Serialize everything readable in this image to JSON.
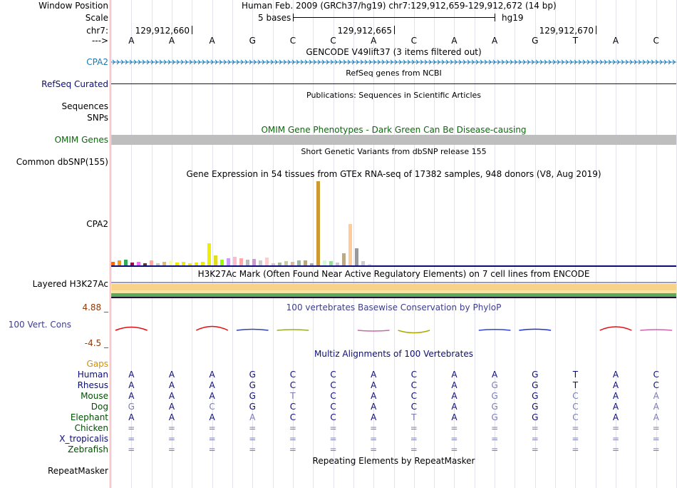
{
  "labels": {
    "window_position": "Window Position",
    "scale": "Scale",
    "chr": "chr7:",
    "arrow": "--->",
    "gencode_track": "CPA2",
    "refseq_track": "RefSeq Curated",
    "sequences": "Sequences",
    "snps": "SNPs",
    "omim_track": "OMIM Genes",
    "dbsnp_track": "Common dbSNP(155)",
    "gtex_track": "CPA2",
    "h3k27ac_track": "Layered H3K27Ac",
    "cons_max": "4.88 _",
    "cons_track": "100 Vert. Cons",
    "cons_min": "-4.5 _",
    "gaps": "Gaps",
    "repeatmasker_track": "RepeatMasker"
  },
  "headers": {
    "assembly": "Human Feb. 2009 (GRCh37/hg19)   chr7:129,912,659-129,912,672 (14 bp)",
    "scale_bases": "5 bases",
    "scale_db": "hg19",
    "gencode": "GENCODE V49lift37 (3 items filtered out)",
    "refseq": "RefSeq genes from NCBI",
    "publications": "Publications: Sequences in Scientific Articles",
    "omim": "OMIM Gene Phenotypes - Dark Green Can Be Disease-causing",
    "dbsnp": "Short Genetic Variants from dbSNP release 155",
    "gtex": "Gene Expression in 54 tissues from GTEx RNA-seq of 17382 samples, 948 donors (V8, Aug 2019)",
    "h3k27ac": "H3K27Ac Mark (Often Found Near Active Regulatory Elements) on 7 cell lines from ENCODE",
    "phylop": "100 vertebrates Basewise Conservation by PhyloP",
    "multiz": "Multiz Alignments of 100 Vertebrates",
    "repeatmasker": "Repeating Elements by RepeatMasker"
  },
  "ruler": {
    "ticks": [
      "129,912,660",
      "129,912,665",
      "129,912,670"
    ]
  },
  "reference_bases": [
    "A",
    "A",
    "A",
    "G",
    "C",
    "C",
    "A",
    "C",
    "A",
    "A",
    "G",
    "T",
    "A",
    "C"
  ],
  "gtex_bars": [
    {
      "color": "#ff6600",
      "value": 6
    },
    {
      "color": "#ff9900",
      "value": 8
    },
    {
      "color": "#33aa55",
      "value": 9
    },
    {
      "color": "#aa0044",
      "value": 5
    },
    {
      "color": "#ff66ff",
      "value": 6
    },
    {
      "color": "#663333",
      "value": 4
    },
    {
      "color": "#ffaa99",
      "value": 8
    },
    {
      "color": "#cccc99",
      "value": 4
    },
    {
      "color": "#ddbb77",
      "value": 6
    },
    {
      "color": "#ffff99",
      "value": 7
    },
    {
      "color": "#eeee00",
      "value": 5
    },
    {
      "color": "#eeee00",
      "value": 6
    },
    {
      "color": "#eeee00",
      "value": 4
    },
    {
      "color": "#eeee00",
      "value": 5
    },
    {
      "color": "#eeee00",
      "value": 6
    },
    {
      "color": "#eeee00",
      "value": 32
    },
    {
      "color": "#dddd22",
      "value": 15
    },
    {
      "color": "#99ff00",
      "value": 9
    },
    {
      "color": "#cc99ff",
      "value": 11
    },
    {
      "color": "#ffbbcc",
      "value": 13
    },
    {
      "color": "#ffaaaa",
      "value": 11
    },
    {
      "color": "#bbbbbb",
      "value": 9
    },
    {
      "color": "#cc99cc",
      "value": 10
    },
    {
      "color": "#cccccc",
      "value": 8
    },
    {
      "color": "#ffcccc",
      "value": 12
    },
    {
      "color": "#eebbbb",
      "value": 4
    },
    {
      "color": "#aabb99",
      "value": 5
    },
    {
      "color": "#cccc99",
      "value": 7
    },
    {
      "color": "#ddbb99",
      "value": 6
    },
    {
      "color": "#99bb99",
      "value": 8
    },
    {
      "color": "#bbaa77",
      "value": 8
    },
    {
      "color": "#aaaaaa",
      "value": 4
    },
    {
      "color": "#cc9933",
      "value": 118
    },
    {
      "color": "#ccffcc",
      "value": 8
    },
    {
      "color": "#99dd99",
      "value": 7
    },
    {
      "color": "#cccccc",
      "value": 5
    },
    {
      "color": "#bbaa88",
      "value": 18
    },
    {
      "color": "#ffcc99",
      "value": 59
    },
    {
      "color": "#999999",
      "value": 25
    },
    {
      "color": "#cccccc",
      "value": 7
    },
    {
      "color": "#dddddd",
      "value": 3
    }
  ],
  "phylop_scores": [
    0.45,
    0.0,
    0.55,
    0.15,
    0.08,
    0.0,
    -0.04,
    -0.35,
    0.0,
    0.12,
    0.16,
    0.0,
    0.5,
    0.08
  ],
  "multiz": [
    {
      "species": "Human",
      "bases": [
        "A",
        "A",
        "A",
        "G",
        "C",
        "C",
        "A",
        "C",
        "A",
        "A",
        "G",
        "T",
        "A",
        "C"
      ],
      "mismatch": []
    },
    {
      "species": "Rhesus",
      "bases": [
        "A",
        "A",
        "A",
        "G",
        "C",
        "C",
        "A",
        "C",
        "A",
        "G",
        "G",
        "T",
        "A",
        "C"
      ],
      "mismatch": [
        9
      ]
    },
    {
      "species": "Mouse",
      "bases": [
        "A",
        "A",
        "A",
        "G",
        "T",
        "C",
        "A",
        "C",
        "A",
        "G",
        "G",
        "C",
        "A",
        "A"
      ],
      "mismatch": [
        4,
        9,
        11,
        13
      ]
    },
    {
      "species": "Dog",
      "bases": [
        "G",
        "A",
        "C",
        "G",
        "C",
        "C",
        "A",
        "C",
        "A",
        "G",
        "G",
        "C",
        "A",
        "A"
      ],
      "mismatch": [
        0,
        2,
        9,
        11,
        13
      ]
    },
    {
      "species": "Elephant",
      "bases": [
        "A",
        "A",
        "A",
        "A",
        "C",
        "C",
        "A",
        "T",
        "A",
        "G",
        "G",
        "C",
        "A",
        "A"
      ],
      "mismatch": [
        3,
        7,
        9,
        11,
        13
      ]
    },
    {
      "species": "Chicken",
      "bases": [
        "=",
        "=",
        "=",
        "=",
        "=",
        "=",
        "=",
        "=",
        "=",
        "=",
        "=",
        "=",
        "=",
        "="
      ],
      "mismatch": []
    },
    {
      "species": "X_tropicalis",
      "bases": [
        "=",
        "=",
        "=",
        "=",
        "=",
        "=",
        "=",
        "=",
        "=",
        "=",
        "=",
        "=",
        "=",
        "="
      ],
      "mismatch": []
    },
    {
      "species": "Zebrafish",
      "bases": [
        "=",
        "=",
        "=",
        "=",
        "=",
        "=",
        "=",
        "=",
        "=",
        "=",
        "=",
        "=",
        "=",
        "="
      ],
      "mismatch": []
    }
  ],
  "colors": {
    "gencode": "#1d77b1",
    "refseq": "#0c0c78",
    "omim": "#0a6a0a",
    "omim_bar": "#bebebe",
    "cons_label": "#3d3d8f",
    "cons_range": "#8b3a0e",
    "gaps": "#d88d00",
    "species": "#004f00",
    "base": "#0c0c78",
    "mismatch": "#7a7ab8",
    "h3k27ac_band": "#f7d38a",
    "h3k27ac_green": "#5caa5c"
  }
}
